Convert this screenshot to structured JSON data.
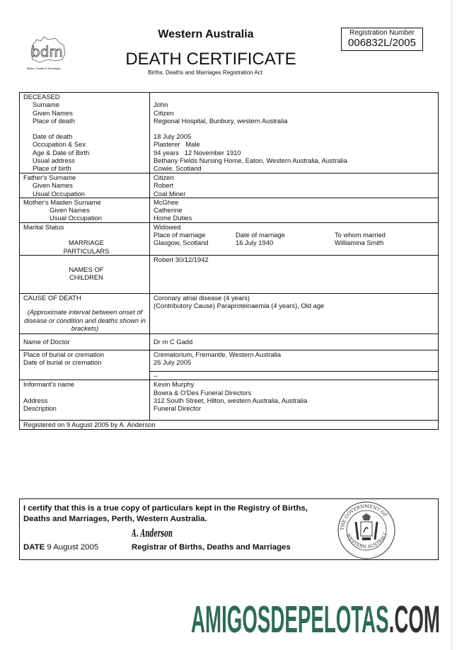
{
  "header": {
    "state": "Western Australia",
    "title": "DEATH CERTIFICATE",
    "act": "Births, Deaths and Marriages Registration Act",
    "registration_label": "Registration Number",
    "registration_number": "006832L/2005",
    "logo_text": "bdm",
    "logo_caption": "Births, Deaths & Marriages"
  },
  "deceased": {
    "heading": "DECEASED",
    "fields": [
      {
        "label": "Surname",
        "value": "John"
      },
      {
        "label": "Given Names",
        "value": "Citizen"
      },
      {
        "label": "Place of death",
        "value": "Regional Hospital, Bunbury, western Australia"
      },
      {
        "label": "Date of death",
        "value": "18 July 2005"
      },
      {
        "label": "Occupation & Sex",
        "value": "Plasterer   Male"
      },
      {
        "label": "Age & Date of Birth",
        "value": "94 years   12 November 1910"
      },
      {
        "label": "Usual address",
        "value": "Bethany Fields Nursing Home, Eaton, Western Australia, Australia"
      },
      {
        "label": "Place of birth",
        "value": "Cowie, Scotland"
      }
    ]
  },
  "father": [
    {
      "label": "Father's Surname",
      "value": "Citizen"
    },
    {
      "label": "Given Names",
      "value": "Robert"
    },
    {
      "label": "Usual Occupation",
      "value": "Coal Miner"
    }
  ],
  "mother": [
    {
      "label": "Mother's Maiden Surname",
      "value": "McGhee"
    },
    {
      "label": "Given Names",
      "value": "Catherine"
    },
    {
      "label": "Usual Occupation",
      "value": "Home Duties"
    }
  ],
  "marital": {
    "label": "Marital Status",
    "value": "Widowed",
    "particulars_label_1": "MARRIAGE",
    "particulars_label_2": "PARTICULARS",
    "headers": [
      "Place of marriage",
      "Date of marriage",
      "To whom married"
    ],
    "values": [
      "Glasgow, Scotland",
      "16 July 1940",
      "Williamina Smith"
    ]
  },
  "children": {
    "label_1": "NAMES OF",
    "label_2": "CHILDREN",
    "value": "Robert 30/12/1942"
  },
  "cause": {
    "label": "CAUSE OF DEATH",
    "note": "(Approximate interval between onset of disease or condition and deaths shown in brackets)",
    "lines": [
      "Coronary atrial disease (4 years)",
      "(Contributory Cause) Paraproteinaemia (4 years), Old age"
    ]
  },
  "doctor": {
    "label": "Name of Doctor",
    "value": "Dr m C Gadd"
  },
  "burial": {
    "place_label": "Place of burial or cremation",
    "date_label": "Date of burial or cremation",
    "place": "Crematorium, Fremantle, Western Australia",
    "date": "26 July 2005",
    "extra": "--"
  },
  "informant": {
    "name_label": "Informant's name",
    "address_label": "Address",
    "description_label": "Description",
    "name": "Kevin Murphy",
    "org": "Bowra & O'Des Funeral Directors",
    "address": "312 South Street, Hilton, western Australia, Australia",
    "description": "Funeral Director"
  },
  "registered": "Registered on 9 August 2005 by A. Anderson",
  "certification": {
    "statement_1": "I certify that this is a true copy of particulars kept in the Registry of Births,",
    "statement_2": "Deaths and Marriages, Perth, Western Australia.",
    "signature": "A. Anderson",
    "date_label": "DATE",
    "date": "9 August 2005",
    "registrar": "Registrar of Births, Deaths and Marriages",
    "seal_text": "THE GOVERNMENT OF WESTERN AUSTRALIA"
  },
  "watermark": {
    "main": "AMIGOSDEPELOTAS",
    "suffix": ".COM",
    "main_color": "#2f6b55",
    "suffix_color": "#333333"
  }
}
